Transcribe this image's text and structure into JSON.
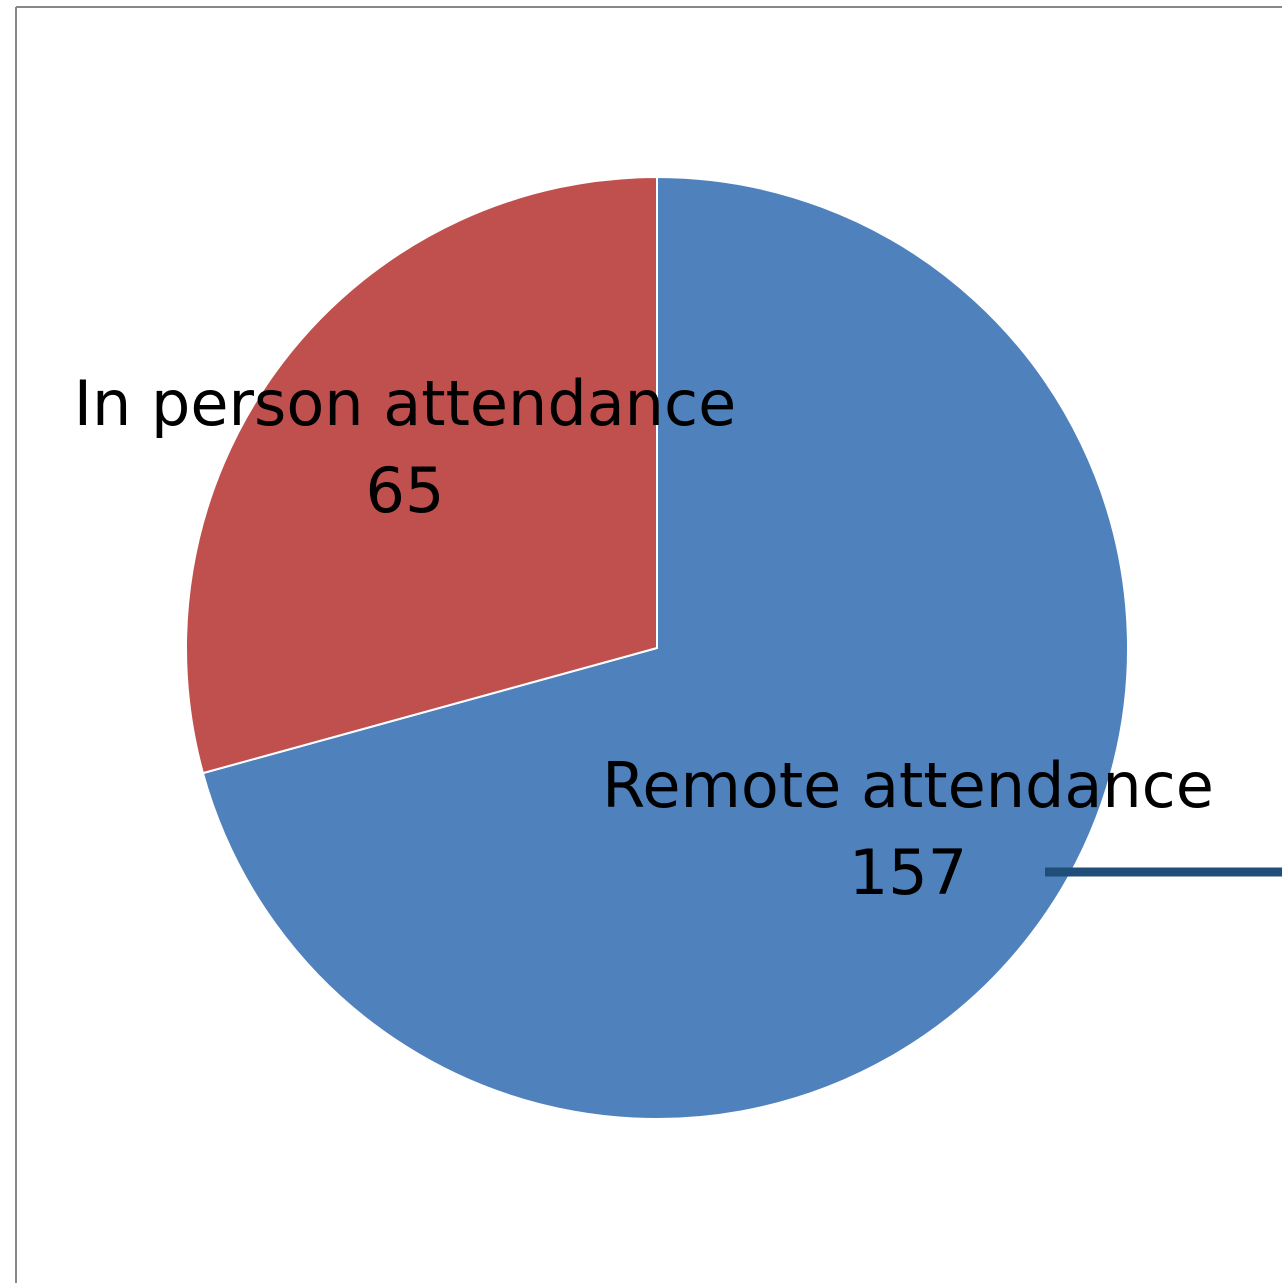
{
  "chart_data": {
    "type": "pie",
    "categories": [
      "Remote attendance",
      "In person attendance"
    ],
    "values": [
      157,
      65
    ],
    "colors": [
      "#4f81bd",
      "#c0504d"
    ]
  }
}
